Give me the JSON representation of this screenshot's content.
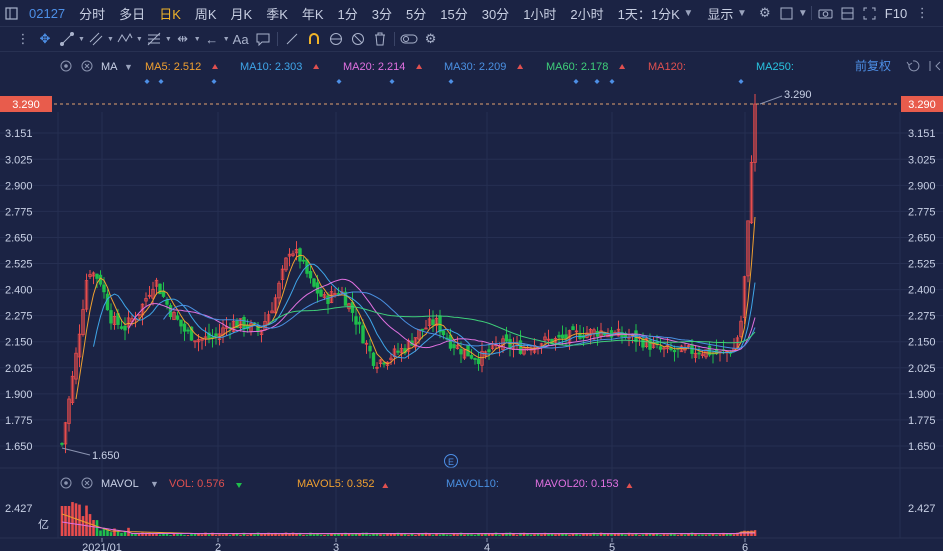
{
  "topbar": {
    "code": "02127",
    "periods": [
      "分时",
      "多日",
      "日K",
      "周K",
      "月K",
      "季K",
      "年K",
      "1分",
      "3分",
      "5分",
      "15分",
      "30分",
      "1小时",
      "2小时"
    ],
    "active_period": "日K",
    "period_menu": "1天：1分K",
    "display_label": "显示",
    "f10_label": "F10"
  },
  "toolbar": {
    "tools": [
      "crosshair-icon",
      "line-icon",
      "channel-icon",
      "wave-icon",
      "fib-icon",
      "range-icon",
      "arrow-icon",
      "text-icon",
      "comment-icon",
      "ruler-icon",
      "magnet-icon",
      "link-icon",
      "hide-icon",
      "trash-icon",
      "lock-icon",
      "settings-icon"
    ],
    "text_tool": "Aa"
  },
  "indicator": {
    "name": "MA",
    "items": [
      {
        "label": "MA5: 2.512",
        "color": "#f0a030"
      },
      {
        "label": "MA10: 2.303",
        "color": "#3fa5e8"
      },
      {
        "label": "MA20: 2.214",
        "color": "#e070e0"
      },
      {
        "label": "MA30: 2.209",
        "color": "#4a90e2"
      },
      {
        "label": "MA60: 2.178",
        "color": "#3fcf7a"
      },
      {
        "label": "MA120:",
        "color": "#e05050"
      },
      {
        "label": "MA250:",
        "color": "#29c4e0"
      }
    ],
    "adjust_label": "前复权"
  },
  "volume": {
    "name": "MAVOL",
    "items": [
      {
        "label": "VOL: 0.576",
        "color": "#e05050"
      },
      {
        "label": "MAVOL5: 0.352",
        "color": "#f0a030"
      },
      {
        "label": "MAVOL10:",
        "color": "#4a90e2"
      },
      {
        "label": "MAVOL20: 0.153",
        "color": "#e070e0"
      }
    ],
    "axis_value": "2.427",
    "unit": "亿"
  },
  "chart_data": {
    "type": "candlestick",
    "y_ticks": [
      "3.151",
      "3.025",
      "2.900",
      "2.775",
      "2.650",
      "2.525",
      "2.400",
      "2.275",
      "2.150",
      "2.025",
      "1.900",
      "1.775",
      "1.650"
    ],
    "current_price": "3.290",
    "high_label": "3.290",
    "low_label": "1.650",
    "x_ticks": [
      "2021/01",
      "2",
      "3",
      "4",
      "5",
      "6"
    ],
    "ylim": [
      1.6,
      3.33
    ],
    "series": [
      {
        "name": "MA5",
        "values": []
      },
      {
        "name": "MA10",
        "values": []
      },
      {
        "name": "MA20",
        "values": []
      },
      {
        "name": "MA30",
        "values": []
      },
      {
        "name": "MA60",
        "values": []
      }
    ],
    "event_marker": "E",
    "colors": {
      "up": "#e84c4c",
      "down": "#1fbf4c",
      "grid": "#262f52",
      "bg": "#1b2344",
      "accent": "#4d8fe6",
      "current": "#e85c4c"
    }
  }
}
